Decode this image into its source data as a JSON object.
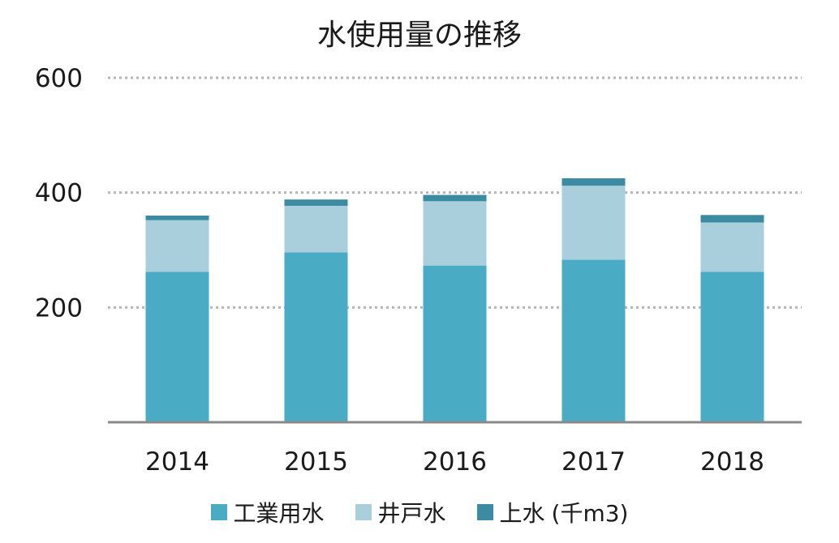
{
  "chart_data": {
    "type": "bar",
    "stacked": true,
    "title": "水使用量の推移",
    "categories": [
      "2014",
      "2015",
      "2016",
      "2017",
      "2018"
    ],
    "series": [
      {
        "name": "工業用水",
        "color": "#4aabc4",
        "values": [
          262,
          296,
          273,
          283,
          262
        ]
      },
      {
        "name": "井戸水",
        "color": "#a9cfdd",
        "values": [
          90,
          81,
          112,
          129,
          86
        ]
      },
      {
        "name": "上水",
        "color": "#3d8ba3",
        "values": [
          8,
          11,
          11,
          13,
          13
        ]
      }
    ],
    "legend_suffix": "(千m3)",
    "ylim": [
      0,
      600
    ],
    "yticks": [
      200,
      400,
      600
    ],
    "grid": true,
    "legend_position": "bottom"
  }
}
